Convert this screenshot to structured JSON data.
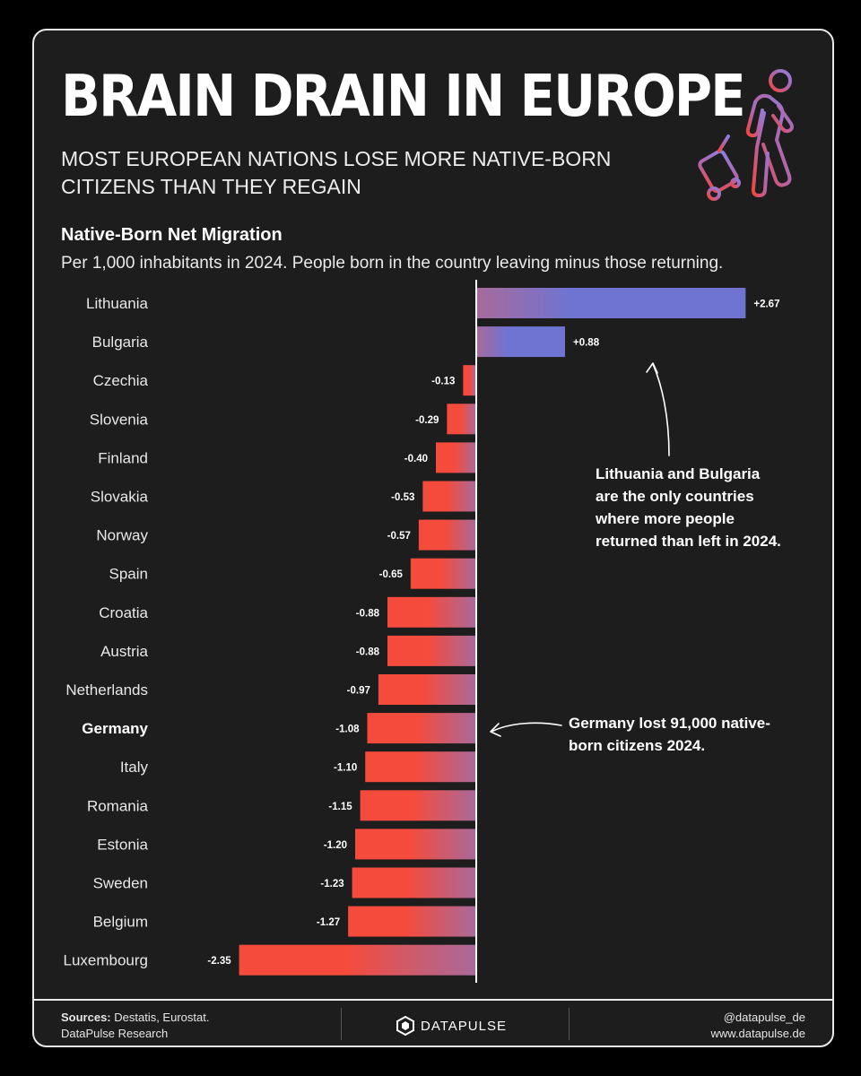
{
  "header": {
    "title": "BRAIN DRAIN IN EUROPE",
    "subtitle": "MOST EUROPEAN NATIONS LOSE MORE NATIVE-BORN CITIZENS THAN THEY REGAIN"
  },
  "chart_data": {
    "type": "bar",
    "orientation": "horizontal",
    "title": "Native-Born Net Migration",
    "subtitle": "Per 1,000 inhabitants in 2024. People born in the country leaving minus those returning.",
    "categories": [
      "Lithuania",
      "Bulgaria",
      "Czechia",
      "Slovenia",
      "Finland",
      "Slovakia",
      "Norway",
      "Spain",
      "Croatia",
      "Austria",
      "Netherlands",
      "Germany",
      "Italy",
      "Romania",
      "Estonia",
      "Sweden",
      "Belgium",
      "Luxembourg"
    ],
    "values": [
      2.67,
      0.88,
      -0.13,
      -0.29,
      -0.4,
      -0.53,
      -0.57,
      -0.65,
      -0.88,
      -0.88,
      -0.97,
      -1.08,
      -1.1,
      -1.15,
      -1.2,
      -1.23,
      -1.27,
      -2.35
    ],
    "value_labels": [
      "+2.67",
      "+0.88",
      "-0.13",
      "-0.29",
      "-0.40",
      "-0.53",
      "-0.57",
      "-0.65",
      "-0.88",
      "-0.88",
      "-0.97",
      "-1.08",
      "-1.10",
      "-1.15",
      "-1.20",
      "-1.23",
      "-1.27",
      "-2.35"
    ],
    "highlighted": [
      "Germany"
    ],
    "xlim": [
      -2.35,
      2.67
    ],
    "colors": {
      "positive": "#6f74d2",
      "negative": "#f54b3c",
      "mid": "#a86a9a"
    }
  },
  "annotations": {
    "positive_note": "Lithuania and Bulgaria are the only countries where more people returned than left in 2024.",
    "germany_note": "Germany lost 91,000 native-born citizens 2024."
  },
  "footer": {
    "sources_label": "Sources:",
    "sources_text": " Destatis, Eurostat.",
    "research": "DataPulse Research",
    "brand": "DATAPULSE",
    "handle": "@datapulse_de",
    "website": "www.datapulse.de"
  }
}
